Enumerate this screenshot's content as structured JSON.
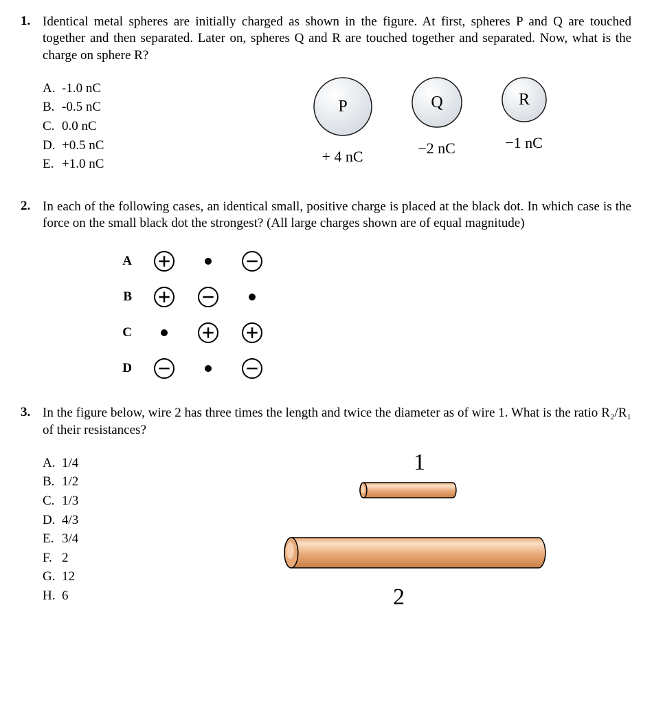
{
  "q1": {
    "number": "1.",
    "text": "Identical metal spheres are initially charged as shown in the figure. At first, spheres P and Q are touched together and then separated. Later on, spheres Q and R are touched together and separated. Now, what is the charge on sphere R?",
    "options": [
      {
        "letter": "A.",
        "text": "-1.0 nC"
      },
      {
        "letter": "B.",
        "text": "-0.5 nC"
      },
      {
        "letter": "C.",
        "text": "0.0 nC"
      },
      {
        "letter": "D.",
        "text": "+0.5 nC"
      },
      {
        "letter": "E.",
        "text": "+1.0 nC"
      }
    ],
    "spheres": [
      {
        "label": "P",
        "charge": "+ 4 nC",
        "radius": 42
      },
      {
        "label": "Q",
        "charge": "−2 nC",
        "radius": 36
      },
      {
        "label": "R",
        "charge": "−1 nC",
        "radius": 32
      }
    ],
    "sphere_fill": "#d8dee4",
    "sphere_stroke": "#1a1a1a"
  },
  "q2": {
    "number": "2.",
    "text": "In each of the following cases, an identical small, positive charge is placed at the black dot. In which case is the force on the small black dot the strongest? (All large charges shown are of equal magnitude)",
    "rows": [
      {
        "label": "A",
        "cells": [
          "plus",
          "dot",
          "minus"
        ]
      },
      {
        "label": "B",
        "cells": [
          "plus",
          "minus",
          "dot"
        ]
      },
      {
        "label": "C",
        "cells": [
          "dot",
          "plus",
          "plus"
        ]
      },
      {
        "label": "D",
        "cells": [
          "minus",
          "dot",
          "minus"
        ]
      }
    ],
    "charge_radius": 14,
    "charge_stroke": "#000000",
    "charge_fill": "#ffffff",
    "dot_radius": 5,
    "dot_fill": "#000000"
  },
  "q3": {
    "number": "3.",
    "text": "In the figure below, wire 2 has three times the length and twice the diameter as of wire 1. What is the ratio R₂/R₁ of their resistances?",
    "options": [
      {
        "letter": "A.",
        "text": "1/4"
      },
      {
        "letter": "B.",
        "text": "1/2"
      },
      {
        "letter": "C.",
        "text": "1/3"
      },
      {
        "letter": "D.",
        "text": "4/3"
      },
      {
        "letter": "E.",
        "text": "3/4"
      },
      {
        "letter": "F.",
        "text": "2"
      },
      {
        "letter": "G.",
        "text": "12"
      },
      {
        "letter": "H.",
        "text": "6"
      }
    ],
    "wire1_label": "1",
    "wire2_label": "2",
    "wire_fill": "#e9a978",
    "wire_highlight": "#fbe1c6",
    "wire_stroke": "#000000",
    "wire1": {
      "length": 130,
      "radius": 11
    },
    "wire2": {
      "length": 360,
      "radius": 22
    }
  }
}
